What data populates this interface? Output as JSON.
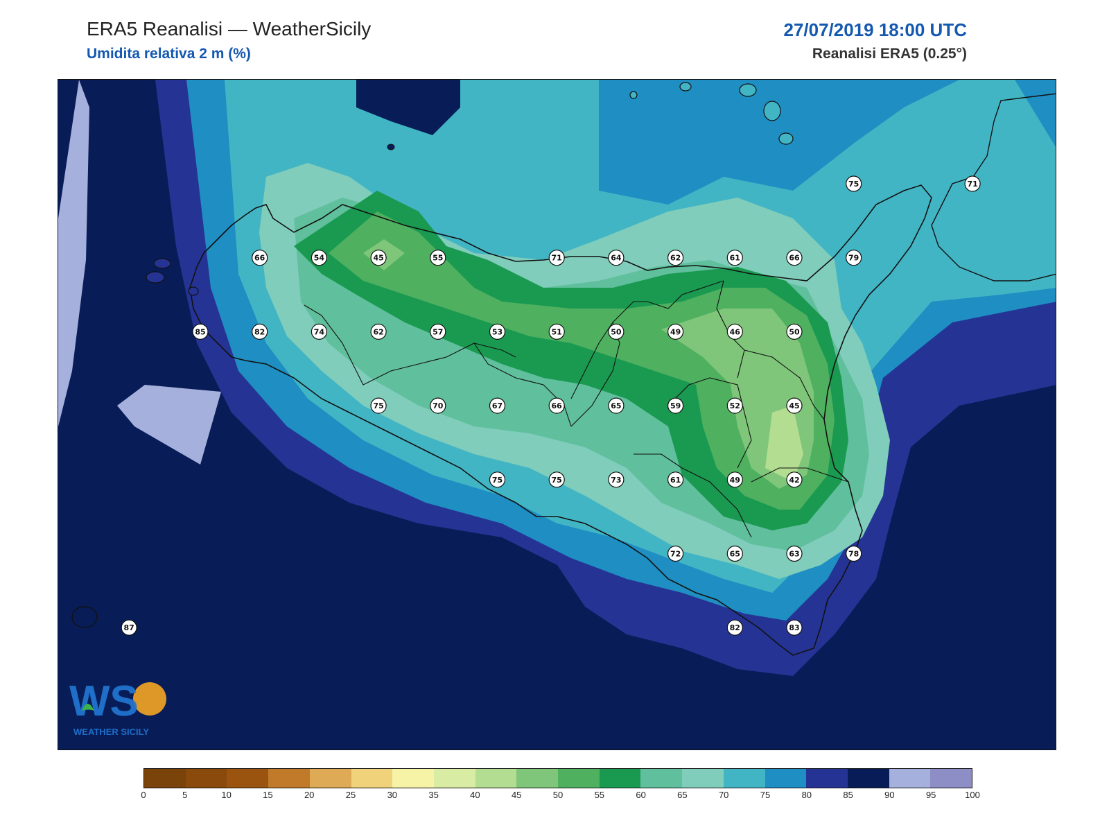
{
  "header": {
    "title": "ERA5 Reanalisi — WeatherSicily",
    "subtitle": "Umidita relativa 2 m (%)",
    "datetime": "27/07/2019 18:00 UTC",
    "source": "Reanalisi ERA5 (0.25°)"
  },
  "logo": {
    "letters": "WS",
    "caption": "WEATHER SICILY"
  },
  "colorbar": {
    "ticks": [
      "0",
      "5",
      "10",
      "15",
      "20",
      "25",
      "30",
      "35",
      "40",
      "45",
      "50",
      "55",
      "60",
      "65",
      "70",
      "75",
      "80",
      "85",
      "90",
      "95",
      "100"
    ],
    "colors": [
      "#7a4309",
      "#8a4a0c",
      "#9a5410",
      "#c07a2a",
      "#dfaa55",
      "#f0d27a",
      "#f6f2a6",
      "#d9eca4",
      "#b3dd91",
      "#7fc67a",
      "#4fb060",
      "#1a9a50",
      "#60bf9c",
      "#80cdbb",
      "#42b5c5",
      "#1f8ec2",
      "#253494",
      "#081d58",
      "#a6b0dc",
      "#8e8ec6"
    ]
  },
  "stations": [
    {
      "v": 75,
      "lon": 15.0,
      "lat": 38.25
    },
    {
      "v": 71,
      "lon": 15.5,
      "lat": 38.25
    },
    {
      "v": 66,
      "lon": 12.5,
      "lat": 38.0
    },
    {
      "v": 54,
      "lon": 12.75,
      "lat": 38.0
    },
    {
      "v": 45,
      "lon": 13.0,
      "lat": 38.0
    },
    {
      "v": 55,
      "lon": 13.25,
      "lat": 38.0
    },
    {
      "v": 71,
      "lon": 13.75,
      "lat": 38.0
    },
    {
      "v": 64,
      "lon": 14.0,
      "lat": 38.0
    },
    {
      "v": 62,
      "lon": 14.25,
      "lat": 38.0
    },
    {
      "v": 61,
      "lon": 14.5,
      "lat": 38.0
    },
    {
      "v": 66,
      "lon": 14.75,
      "lat": 38.0
    },
    {
      "v": 79,
      "lon": 15.0,
      "lat": 38.0
    },
    {
      "v": 85,
      "lon": 12.25,
      "lat": 37.75
    },
    {
      "v": 82,
      "lon": 12.5,
      "lat": 37.75
    },
    {
      "v": 74,
      "lon": 12.75,
      "lat": 37.75
    },
    {
      "v": 62,
      "lon": 13.0,
      "lat": 37.75
    },
    {
      "v": 57,
      "lon": 13.25,
      "lat": 37.75
    },
    {
      "v": 53,
      "lon": 13.5,
      "lat": 37.75
    },
    {
      "v": 51,
      "lon": 13.75,
      "lat": 37.75
    },
    {
      "v": 50,
      "lon": 14.0,
      "lat": 37.75
    },
    {
      "v": 49,
      "lon": 14.25,
      "lat": 37.75
    },
    {
      "v": 46,
      "lon": 14.5,
      "lat": 37.75
    },
    {
      "v": 50,
      "lon": 14.75,
      "lat": 37.75
    },
    {
      "v": 75,
      "lon": 13.0,
      "lat": 37.5
    },
    {
      "v": 70,
      "lon": 13.25,
      "lat": 37.5
    },
    {
      "v": 67,
      "lon": 13.5,
      "lat": 37.5
    },
    {
      "v": 66,
      "lon": 13.75,
      "lat": 37.5
    },
    {
      "v": 65,
      "lon": 14.0,
      "lat": 37.5
    },
    {
      "v": 59,
      "lon": 14.25,
      "lat": 37.5
    },
    {
      "v": 52,
      "lon": 14.5,
      "lat": 37.5
    },
    {
      "v": 45,
      "lon": 14.75,
      "lat": 37.5
    },
    {
      "v": 75,
      "lon": 13.5,
      "lat": 37.25
    },
    {
      "v": 75,
      "lon": 13.75,
      "lat": 37.25
    },
    {
      "v": 73,
      "lon": 14.0,
      "lat": 37.25
    },
    {
      "v": 61,
      "lon": 14.25,
      "lat": 37.25
    },
    {
      "v": 49,
      "lon": 14.5,
      "lat": 37.25
    },
    {
      "v": 42,
      "lon": 14.75,
      "lat": 37.25
    },
    {
      "v": 72,
      "lon": 14.25,
      "lat": 37.0
    },
    {
      "v": 65,
      "lon": 14.5,
      "lat": 37.0
    },
    {
      "v": 63,
      "lon": 14.75,
      "lat": 37.0
    },
    {
      "v": 78,
      "lon": 15.0,
      "lat": 37.0
    },
    {
      "v": 87,
      "lon": 11.95,
      "lat": 36.75
    },
    {
      "v": 82,
      "lon": 14.5,
      "lat": 36.75
    },
    {
      "v": 83,
      "lon": 14.75,
      "lat": 36.75
    }
  ]
}
